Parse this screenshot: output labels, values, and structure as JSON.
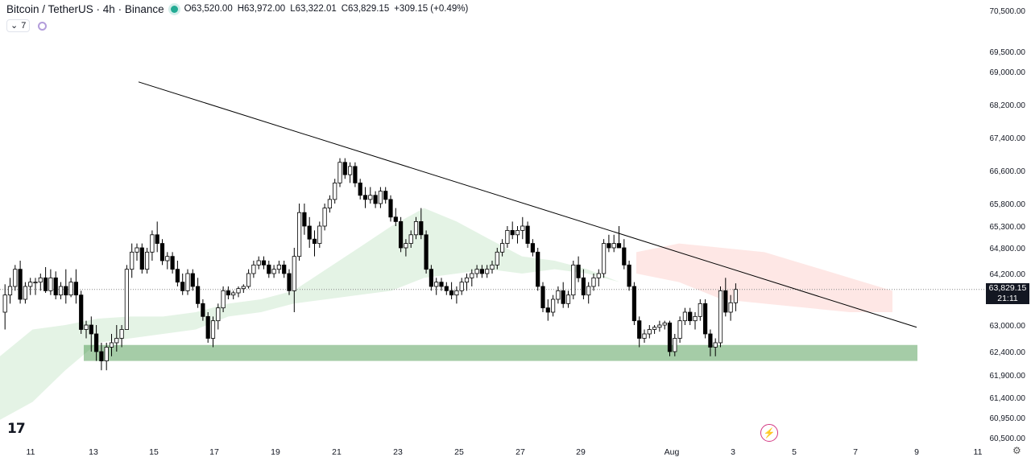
{
  "header": {
    "symbol_title": "Bitcoin / TetherUS · 4h · Binance",
    "open": "O63,520.00",
    "high": "H63,972.00",
    "low": "L63,322.01",
    "close": "C63,829.15",
    "change": "+309.15 (+0.49%)",
    "indicators_count": "7"
  },
  "price_tag": {
    "price": "63,829.15",
    "countdown": "21:11"
  },
  "colors": {
    "up_candle": "#ffffff",
    "down_candle": "#000000",
    "cloud_green": "#4caf50",
    "cloud_red": "#f44336",
    "support_zone": "#388e3c",
    "trendline": "#000000"
  },
  "icons": [
    "tradingview-logo-icon",
    "live-dot-icon",
    "indicators-icon",
    "lightning-icon",
    "settings-icon"
  ],
  "chart_data": {
    "type": "candlestick",
    "symbol": "Bitcoin / TetherUS",
    "interval": "4h",
    "exchange": "Binance",
    "y_axis_ticks": [
      "70,500.00",
      "69,500.00",
      "69,000.00",
      "68,200.00",
      "67,400.00",
      "66,600.00",
      "65,800.00",
      "65,300.00",
      "64,800.00",
      "64,200.00",
      "63,000.00",
      "62,400.00",
      "61,900.00",
      "61,400.00",
      "60,950.00",
      "60,500.00"
    ],
    "x_axis_ticks": [
      "11",
      "13",
      "15",
      "17",
      "19",
      "21",
      "23",
      "25",
      "27",
      "29",
      "Aug",
      "3",
      "5",
      "7",
      "9",
      "11"
    ],
    "last_price": 63829.15,
    "candles": [
      [
        63300,
        63950,
        62900,
        63700
      ],
      [
        63700,
        64100,
        63500,
        63900
      ],
      [
        63900,
        64400,
        63800,
        64300
      ],
      [
        64300,
        64500,
        63500,
        63600
      ],
      [
        63600,
        64000,
        63500,
        63900
      ],
      [
        63900,
        64100,
        63700,
        64000
      ],
      [
        64000,
        64100,
        63700,
        64000
      ],
      [
        64000,
        64200,
        63800,
        64100
      ],
      [
        64100,
        64350,
        63750,
        63800
      ],
      [
        63800,
        64300,
        63700,
        64100
      ],
      [
        64100,
        64250,
        63600,
        63700
      ],
      [
        63700,
        64000,
        63600,
        63900
      ],
      [
        63900,
        64300,
        63500,
        63700
      ],
      [
        63700,
        64100,
        63650,
        64000
      ],
      [
        64000,
        64300,
        63500,
        63700
      ],
      [
        63700,
        63800,
        62800,
        62900
      ],
      [
        62900,
        63100,
        62700,
        63000
      ],
      [
        63000,
        63200,
        62400,
        62800
      ],
      [
        62800,
        63000,
        62200,
        62400
      ],
      [
        62400,
        62600,
        62000,
        62200
      ],
      [
        62200,
        62600,
        62000,
        62500
      ],
      [
        62500,
        62800,
        62300,
        62600
      ],
      [
        62600,
        63000,
        62400,
        62700
      ],
      [
        62700,
        63000,
        62500,
        62900
      ],
      [
        62900,
        64400,
        62900,
        64300
      ],
      [
        64300,
        64900,
        64100,
        64700
      ],
      [
        64700,
        64900,
        64500,
        64800
      ],
      [
        64800,
        64900,
        64200,
        64300
      ],
      [
        64300,
        64800,
        64200,
        64700
      ],
      [
        64700,
        65200,
        64500,
        65100
      ],
      [
        65100,
        65400,
        64700,
        64900
      ],
      [
        64900,
        65000,
        64400,
        64500
      ],
      [
        64500,
        64700,
        64300,
        64600
      ],
      [
        64600,
        64700,
        64200,
        64300
      ],
      [
        64300,
        64500,
        63900,
        64000
      ],
      [
        64000,
        64200,
        63700,
        63800
      ],
      [
        63800,
        64300,
        63700,
        64200
      ],
      [
        64200,
        64300,
        63800,
        63900
      ],
      [
        63900,
        64100,
        63400,
        63500
      ],
      [
        63500,
        63600,
        63100,
        63200
      ],
      [
        63200,
        63300,
        62600,
        62700
      ],
      [
        62700,
        63200,
        62500,
        63100
      ],
      [
        63100,
        63500,
        62900,
        63400
      ],
      [
        63400,
        63900,
        63300,
        63800
      ],
      [
        63800,
        63900,
        63600,
        63700
      ],
      [
        63700,
        63800,
        63600,
        63750
      ],
      [
        63750,
        63900,
        63650,
        63850
      ],
      [
        63850,
        63950,
        63750,
        63900
      ],
      [
        63900,
        64300,
        63850,
        64200
      ],
      [
        64200,
        64500,
        64100,
        64400
      ],
      [
        64400,
        64600,
        64300,
        64500
      ],
      [
        64500,
        64600,
        64300,
        64400
      ],
      [
        64400,
        64500,
        64100,
        64200
      ],
      [
        64200,
        64400,
        64100,
        64300
      ],
      [
        64300,
        64500,
        64200,
        64400
      ],
      [
        64400,
        64500,
        64100,
        64200
      ],
      [
        64200,
        64300,
        63700,
        63800
      ],
      [
        63800,
        64800,
        63300,
        64600
      ],
      [
        64600,
        65800,
        64500,
        65600
      ],
      [
        65600,
        65800,
        65100,
        65300
      ],
      [
        65300,
        65500,
        64800,
        65000
      ],
      [
        65000,
        65200,
        64600,
        64900
      ],
      [
        64900,
        65400,
        64800,
        65300
      ],
      [
        65300,
        65800,
        65200,
        65700
      ],
      [
        65700,
        66000,
        65600,
        65900
      ],
      [
        65900,
        66400,
        65800,
        66300
      ],
      [
        66300,
        66900,
        66200,
        66800
      ],
      [
        66800,
        66900,
        66400,
        66500
      ],
      [
        66500,
        66800,
        66300,
        66700
      ],
      [
        66700,
        66800,
        66200,
        66300
      ],
      [
        66300,
        66400,
        65900,
        66000
      ],
      [
        66000,
        66200,
        65700,
        65900
      ],
      [
        65900,
        66200,
        65800,
        66000
      ],
      [
        66000,
        66100,
        65700,
        65800
      ],
      [
        65800,
        66200,
        65700,
        66100
      ],
      [
        66100,
        66200,
        65800,
        65900
      ],
      [
        65900,
        66000,
        65400,
        65500
      ],
      [
        65500,
        65700,
        65300,
        65400
      ],
      [
        65400,
        65500,
        64700,
        64800
      ],
      [
        64800,
        65000,
        64600,
        64900
      ],
      [
        64900,
        65200,
        64800,
        65100
      ],
      [
        65100,
        65500,
        65000,
        65400
      ],
      [
        65400,
        65700,
        65000,
        65100
      ],
      [
        65100,
        65200,
        64200,
        64300
      ],
      [
        64300,
        64400,
        63800,
        63900
      ],
      [
        63900,
        64100,
        63700,
        64000
      ],
      [
        64000,
        64100,
        63800,
        63900
      ],
      [
        63900,
        64000,
        63700,
        63800
      ],
      [
        63800,
        64000,
        63600,
        63700
      ],
      [
        63700,
        63900,
        63500,
        63800
      ],
      [
        63800,
        64100,
        63700,
        64000
      ],
      [
        64000,
        64200,
        63800,
        64100
      ],
      [
        64100,
        64300,
        63900,
        64200
      ],
      [
        64200,
        64400,
        64100,
        64300
      ],
      [
        64300,
        64400,
        64100,
        64200
      ],
      [
        64200,
        64400,
        64100,
        64300
      ],
      [
        64300,
        64500,
        64200,
        64400
      ],
      [
        64400,
        64800,
        64300,
        64700
      ],
      [
        64700,
        65000,
        64600,
        64900
      ],
      [
        64900,
        65300,
        64800,
        65200
      ],
      [
        65200,
        65400,
        65000,
        65100
      ],
      [
        65100,
        65300,
        64900,
        65200
      ],
      [
        65200,
        65500,
        65000,
        65300
      ],
      [
        65300,
        65400,
        64800,
        64900
      ],
      [
        64900,
        65000,
        64600,
        64700
      ],
      [
        64700,
        64800,
        63800,
        63900
      ],
      [
        63900,
        64000,
        63300,
        63400
      ],
      [
        63400,
        63600,
        63100,
        63300
      ],
      [
        63300,
        63700,
        63200,
        63600
      ],
      [
        63600,
        63900,
        63500,
        63800
      ],
      [
        63800,
        64000,
        63400,
        63500
      ],
      [
        63500,
        63800,
        63400,
        63700
      ],
      [
        63700,
        64500,
        63600,
        64400
      ],
      [
        64400,
        64600,
        64000,
        64100
      ],
      [
        64100,
        64300,
        63600,
        63700
      ],
      [
        63700,
        64000,
        63500,
        63900
      ],
      [
        63900,
        64200,
        63800,
        64100
      ],
      [
        64100,
        64300,
        63900,
        64200
      ],
      [
        64200,
        65000,
        64100,
        64900
      ],
      [
        64900,
        65100,
        64700,
        64800
      ],
      [
        64800,
        65100,
        64700,
        64900
      ],
      [
        64900,
        65300,
        64800,
        64800
      ],
      [
        64800,
        65000,
        64300,
        64400
      ],
      [
        64400,
        64500,
        63800,
        63900
      ],
      [
        63900,
        64000,
        63000,
        63100
      ],
      [
        63100,
        63200,
        62500,
        62700
      ],
      [
        62700,
        62900,
        62600,
        62800
      ],
      [
        62800,
        63000,
        62700,
        62900
      ],
      [
        62900,
        63000,
        62800,
        62950
      ],
      [
        62950,
        63100,
        62850,
        63000
      ],
      [
        63000,
        63100,
        62900,
        63050
      ],
      [
        63050,
        63100,
        62300,
        62400
      ],
      [
        62400,
        62800,
        62300,
        62700
      ],
      [
        62700,
        63200,
        62600,
        63100
      ],
      [
        63100,
        63400,
        63000,
        63300
      ],
      [
        63300,
        63400,
        63000,
        63100
      ],
      [
        63100,
        63300,
        62900,
        63200
      ],
      [
        63200,
        63600,
        63100,
        63500
      ],
      [
        63500,
        63600,
        62700,
        62800
      ],
      [
        62800,
        62900,
        62300,
        62500
      ],
      [
        62500,
        62700,
        62300,
        62600
      ],
      [
        62600,
        63900,
        62500,
        63800
      ],
      [
        63800,
        64100,
        63200,
        63300
      ],
      [
        63300,
        63700,
        63100,
        63520
      ],
      [
        63520,
        63972,
        63322,
        63829.15
      ]
    ],
    "trendline": {
      "from": {
        "x": "Jul 14",
        "y": 68750
      },
      "to": {
        "x": "Aug 9",
        "y": 62950
      }
    },
    "support_zone": {
      "from": "Jul 13",
      "to": "Aug 9",
      "y_low": 62200,
      "y_high": 62550
    },
    "ichimoku_cloud": {
      "green_upper": [
        62300,
        62900,
        63000,
        63150,
        63200,
        63200,
        63300,
        63500,
        63600,
        63800,
        64300,
        64800,
        65300,
        65700,
        65400,
        65000,
        64600,
        64500,
        64300,
        64000
      ],
      "green_lower": [
        60900,
        61300,
        62000,
        62600,
        62700,
        62800,
        62900,
        63200,
        63300,
        63500,
        63600,
        63700,
        63800,
        64100,
        64200,
        64300,
        64200,
        64300,
        64200,
        64000
      ],
      "red_upper": [
        64700,
        64900,
        64800,
        64700,
        64400,
        64100,
        63800
      ],
      "red_lower": [
        64200,
        64000,
        63600,
        63500,
        63400,
        63300,
        63300
      ]
    }
  }
}
